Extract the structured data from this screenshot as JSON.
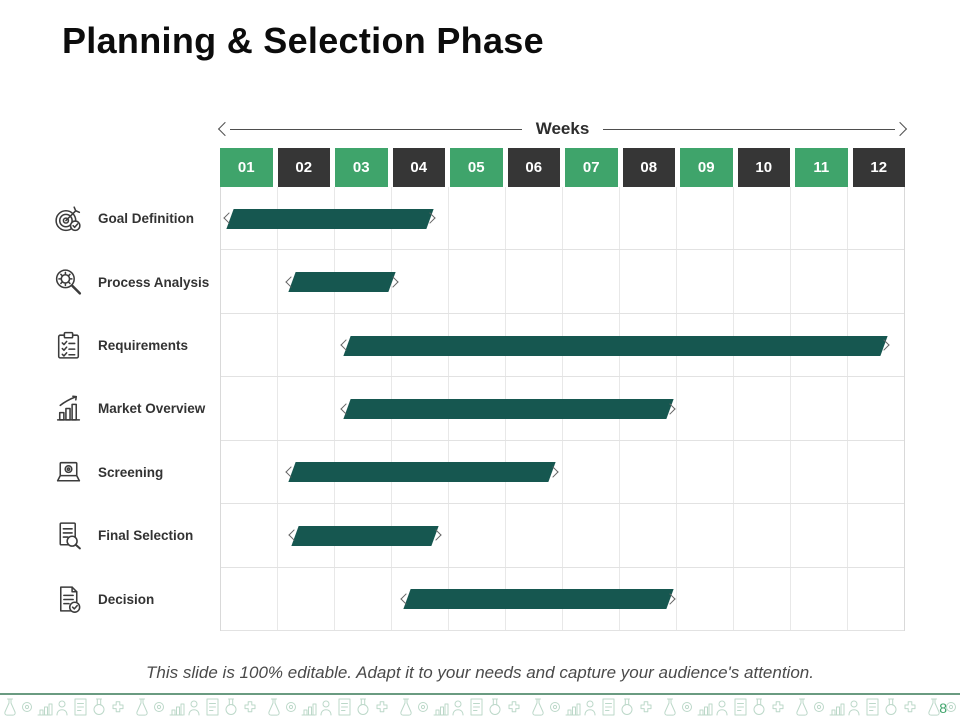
{
  "title": "Planning & Selection Phase",
  "axis": {
    "label": "Weeks"
  },
  "caption": "This slide is 100% editable. Adapt it to your needs and capture your audience's attention.",
  "page_number": "8",
  "colors": {
    "week_green": "#3FA46B",
    "week_dark": "#363636",
    "bar_teal": "#165750",
    "grid_line": "#E2E2E2",
    "axis_arrow_gray": "#4E4E4E",
    "footer_line_green": "#6A9B81",
    "footer_icon_green": "#BCD8C9",
    "page_number_green": "#3FA46B"
  },
  "chart_data": {
    "type": "gantt",
    "title": "Planning & Selection Phase",
    "x_axis": {
      "label": "Weeks",
      "categories": [
        "01",
        "02",
        "03",
        "04",
        "05",
        "06",
        "07",
        "08",
        "09",
        "10",
        "11",
        "12"
      ],
      "range": [
        1,
        13
      ],
      "grid": true
    },
    "tasks": [
      {
        "label": "Goal Definition",
        "icon": "target-goal-icon",
        "start_week": 1.15,
        "end_week": 4.65
      },
      {
        "label": "Process Analysis",
        "icon": "gear-magnifier-icon",
        "start_week": 2.25,
        "end_week": 4.0
      },
      {
        "label": "Requirements",
        "icon": "checklist-clipboard-icon",
        "start_week": 3.2,
        "end_week": 12.6
      },
      {
        "label": "Market Overview",
        "icon": "growth-bar-chart-icon",
        "start_week": 3.2,
        "end_week": 8.85
      },
      {
        "label": "Screening",
        "icon": "laptop-gear-icon",
        "start_week": 2.25,
        "end_week": 6.8
      },
      {
        "label": "Final Selection",
        "icon": "document-magnifier-icon",
        "start_week": 2.3,
        "end_week": 4.75
      },
      {
        "label": "Decision",
        "icon": "document-check-icon",
        "start_week": 4.25,
        "end_week": 8.85
      }
    ]
  }
}
